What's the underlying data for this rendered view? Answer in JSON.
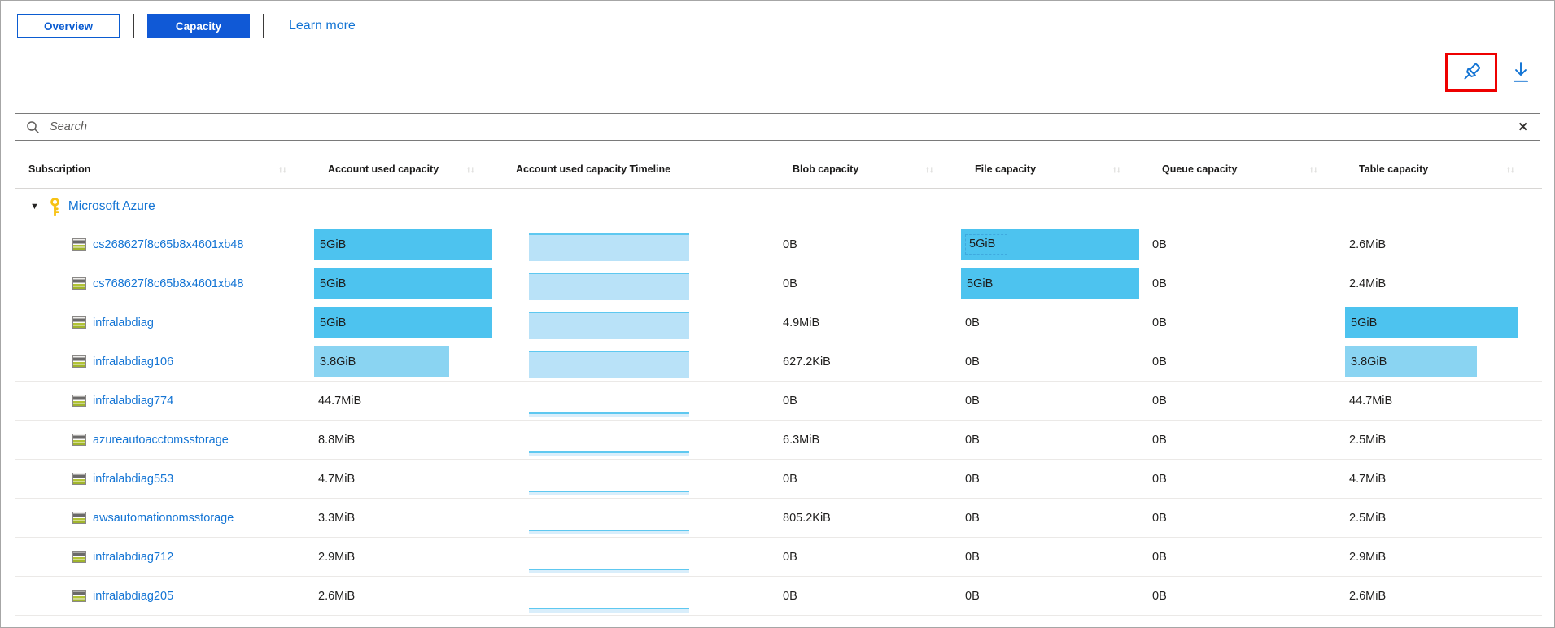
{
  "pivot": {
    "overview_label": "Overview",
    "capacity_label": "Capacity",
    "learn_more_label": "Learn more"
  },
  "toolbar": {
    "pin_icon": "pushpin",
    "download_icon": "download-arrow",
    "pin_highlighted": true
  },
  "search": {
    "placeholder": "Search",
    "value": ""
  },
  "icons": {
    "sort": "↑↓",
    "triangle": "▼",
    "clear": "✕",
    "group_key": "key",
    "row_icon": "storage-account"
  },
  "colors": {
    "accent_blue": "#1059d6",
    "link_blue": "#1374d4",
    "bar_blue": "#4dc3ef",
    "bar_blue_light": "#8ad4f2",
    "timeline_fill": "#b9e2f8",
    "timeline_edge": "#5ec8f0",
    "highlight_red": "#ee0000"
  },
  "table": {
    "columns": [
      {
        "label": "Subscription",
        "sortable": true
      },
      {
        "label": "Account used capacity",
        "sortable": true
      },
      {
        "label": "Account used capacity Timeline",
        "sortable": false
      },
      {
        "label": "Blob capacity",
        "sortable": true
      },
      {
        "label": "File capacity",
        "sortable": true
      },
      {
        "label": "Queue capacity",
        "sortable": true
      },
      {
        "label": "Table capacity",
        "sortable": true
      }
    ],
    "group": {
      "label": "Microsoft Azure",
      "expanded": true
    },
    "rows": [
      {
        "name": "cs268627f8c65b8x4601xb48",
        "account": {
          "text": "5GiB",
          "bar_pct": 95,
          "shade": "normal"
        },
        "timeline": "area",
        "blob": {
          "text": "0B"
        },
        "file": {
          "text": "5GiB",
          "bar_pct": 95,
          "shade": "normal",
          "focused": true
        },
        "queue": {
          "text": "0B"
        },
        "table": {
          "text": "2.6MiB"
        }
      },
      {
        "name": "cs768627f8c65b8x4601xb48",
        "account": {
          "text": "5GiB",
          "bar_pct": 95,
          "shade": "normal"
        },
        "timeline": "area",
        "blob": {
          "text": "0B"
        },
        "file": {
          "text": "5GiB",
          "bar_pct": 95,
          "shade": "normal"
        },
        "queue": {
          "text": "0B"
        },
        "table": {
          "text": "2.4MiB"
        }
      },
      {
        "name": "infralabdiag",
        "account": {
          "text": "5GiB",
          "bar_pct": 95,
          "shade": "normal"
        },
        "timeline": "area",
        "blob": {
          "text": "4.9MiB"
        },
        "file": {
          "text": "0B"
        },
        "queue": {
          "text": "0B"
        },
        "table": {
          "text": "5GiB",
          "bar_pct": 88,
          "shade": "normal"
        }
      },
      {
        "name": "infralabdiag106",
        "account": {
          "text": "3.8GiB",
          "bar_pct": 72,
          "shade": "light"
        },
        "timeline": "area",
        "blob": {
          "text": "627.2KiB"
        },
        "file": {
          "text": "0B"
        },
        "queue": {
          "text": "0B"
        },
        "table": {
          "text": "3.8GiB",
          "bar_pct": 67,
          "shade": "light"
        }
      },
      {
        "name": "infralabdiag774",
        "account": {
          "text": "44.7MiB"
        },
        "timeline": "line",
        "blob": {
          "text": "0B"
        },
        "file": {
          "text": "0B"
        },
        "queue": {
          "text": "0B"
        },
        "table": {
          "text": "44.7MiB"
        }
      },
      {
        "name": "azureautoacctomsstorage",
        "account": {
          "text": "8.8MiB"
        },
        "timeline": "line",
        "blob": {
          "text": "6.3MiB"
        },
        "file": {
          "text": "0B"
        },
        "queue": {
          "text": "0B"
        },
        "table": {
          "text": "2.5MiB"
        }
      },
      {
        "name": "infralabdiag553",
        "account": {
          "text": "4.7MiB"
        },
        "timeline": "line",
        "blob": {
          "text": "0B"
        },
        "file": {
          "text": "0B"
        },
        "queue": {
          "text": "0B"
        },
        "table": {
          "text": "4.7MiB"
        }
      },
      {
        "name": "awsautomationomsstorage",
        "account": {
          "text": "3.3MiB"
        },
        "timeline": "line",
        "blob": {
          "text": "805.2KiB"
        },
        "file": {
          "text": "0B"
        },
        "queue": {
          "text": "0B"
        },
        "table": {
          "text": "2.5MiB"
        }
      },
      {
        "name": "infralabdiag712",
        "account": {
          "text": "2.9MiB"
        },
        "timeline": "line",
        "blob": {
          "text": "0B"
        },
        "file": {
          "text": "0B"
        },
        "queue": {
          "text": "0B"
        },
        "table": {
          "text": "2.9MiB"
        }
      },
      {
        "name": "infralabdiag205",
        "account": {
          "text": "2.6MiB"
        },
        "timeline": "line",
        "blob": {
          "text": "0B"
        },
        "file": {
          "text": "0B"
        },
        "queue": {
          "text": "0B"
        },
        "table": {
          "text": "2.6MiB"
        }
      }
    ]
  }
}
